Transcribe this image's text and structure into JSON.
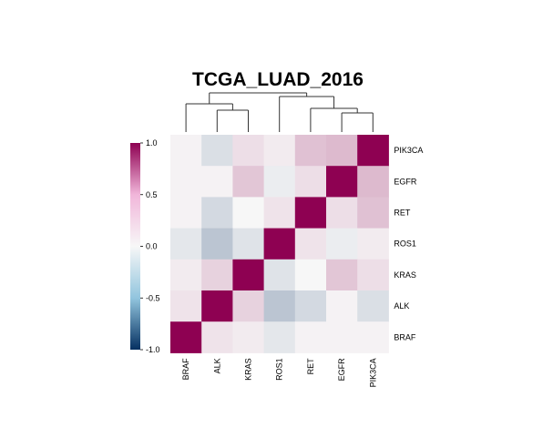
{
  "chart_data": {
    "type": "heatmap",
    "title": "TCGA_LUAD_2016",
    "row_labels": [
      "PIK3CA",
      "EGFR",
      "RET",
      "ROS1",
      "KRAS",
      "ALK",
      "BRAF"
    ],
    "col_labels": [
      "BRAF",
      "ALK",
      "KRAS",
      "ROS1",
      "RET",
      "EGFR",
      "PIK3CA"
    ],
    "values": [
      [
        0.02,
        -0.12,
        0.1,
        0.05,
        0.22,
        0.25,
        1.0
      ],
      [
        0.02,
        0.02,
        0.2,
        -0.05,
        0.1,
        1.0,
        0.25
      ],
      [
        0.02,
        -0.15,
        0.0,
        0.08,
        1.0,
        0.1,
        0.22
      ],
      [
        -0.08,
        -0.25,
        -0.1,
        1.0,
        0.08,
        -0.05,
        0.05
      ],
      [
        0.05,
        0.15,
        1.0,
        -0.1,
        0.0,
        0.2,
        0.1
      ],
      [
        0.08,
        1.0,
        0.15,
        -0.25,
        -0.15,
        0.02,
        -0.12
      ],
      [
        1.0,
        0.08,
        0.05,
        -0.08,
        0.02,
        0.02,
        0.02
      ]
    ],
    "colorbar": {
      "range": [
        -1.0,
        1.0
      ],
      "tick_labels": [
        "1.0",
        "0.5",
        "0.0",
        "-0.5",
        "-1.0"
      ],
      "tick_values": [
        1.0,
        0.5,
        0.0,
        -0.5,
        -1.0
      ],
      "colors": {
        "low": "#053061",
        "mid": "#f7f7f7",
        "high": "#8e0152"
      }
    },
    "dendrogram": "columns"
  }
}
